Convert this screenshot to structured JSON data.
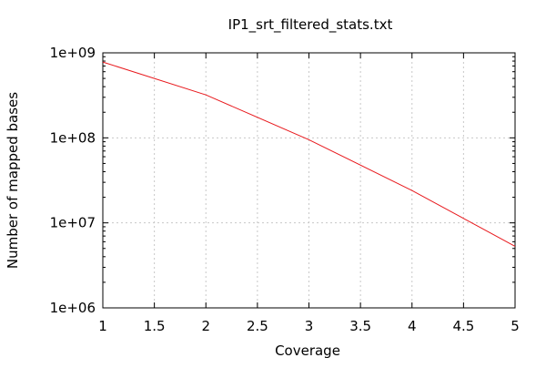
{
  "chart_data": {
    "type": "line",
    "title": "IP1_srt_filtered_stats.txt",
    "xlabel": "Coverage",
    "ylabel": "Number of mapped bases",
    "xlim": [
      1,
      5
    ],
    "ylim": [
      1000000,
      1000000000
    ],
    "yscale": "log",
    "grid": true,
    "x_ticks": [
      1,
      1.5,
      2,
      2.5,
      3,
      3.5,
      4,
      4.5,
      5
    ],
    "x_tick_labels": [
      "1",
      "1.5",
      "2",
      "2.5",
      "3",
      "3.5",
      "4",
      "4.5",
      "5"
    ],
    "y_ticks": [
      1000000,
      10000000,
      100000000,
      1000000000
    ],
    "y_tick_labels": [
      "1e+06",
      "1e+07",
      "1e+08",
      "1e+09"
    ],
    "series": [
      {
        "color": "#e8181c",
        "x": [
          1,
          2,
          3,
          4,
          5
        ],
        "y": [
          780000000,
          320000000,
          95000000,
          24000000,
          5300000
        ]
      }
    ]
  }
}
